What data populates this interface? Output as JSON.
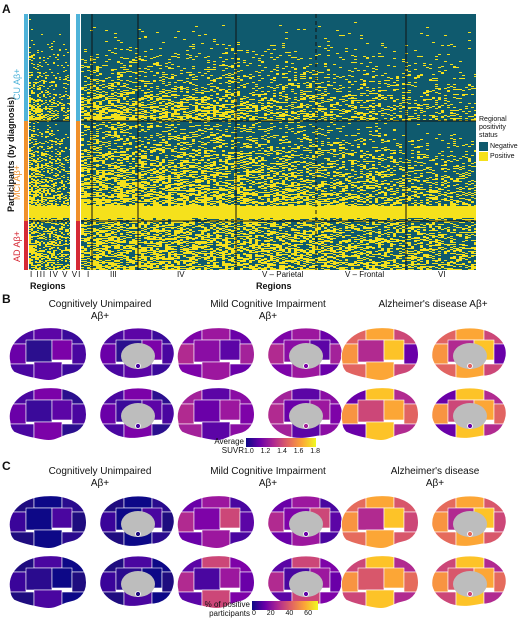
{
  "panel_a": {
    "letter": "A",
    "y_axis_label": "Participants (by diagnosis)",
    "groups": [
      {
        "label": "CU Aβ+",
        "color": "#4fb3d9"
      },
      {
        "label": "MCI Aβ+",
        "color": "#f0902b"
      },
      {
        "label": "AD Aβ+",
        "color": "#d62a36"
      }
    ],
    "left_region_ticks": [
      "I",
      "III",
      "IV",
      "V",
      "VI"
    ],
    "left_regions_label": "Regions",
    "right_region_ticks": [
      "I",
      "III",
      "IV",
      "V – Parietal",
      "V – Frontal",
      "VI"
    ],
    "right_regions_label": "Regions",
    "legend": {
      "title": "Regional positivity status",
      "items": [
        {
          "label": "Negative",
          "color": "#0f5a6e"
        },
        {
          "label": "Positive",
          "color": "#f5e11c"
        }
      ]
    }
  },
  "panel_b": {
    "letter": "B",
    "titles": [
      "Cognitively Unimpaired Aβ+",
      "Mild Cognitive Impairment Aβ+",
      "Alzheimer's disease Aβ+"
    ],
    "colorbar_label": "Average SUVR",
    "colorbar_ticks": [
      "1.0",
      "1.2",
      "1.4",
      "1.6",
      "1.8"
    ]
  },
  "panel_c": {
    "letter": "C",
    "titles": [
      "Cognitively Unimpaired Aβ+",
      "Mild Cognitive Impairment Aβ+",
      "Alzheimer's disease Aβ+"
    ],
    "colorbar_label": "% of positive participants",
    "colorbar_ticks": [
      "0",
      "20",
      "40",
      "60"
    ]
  }
}
